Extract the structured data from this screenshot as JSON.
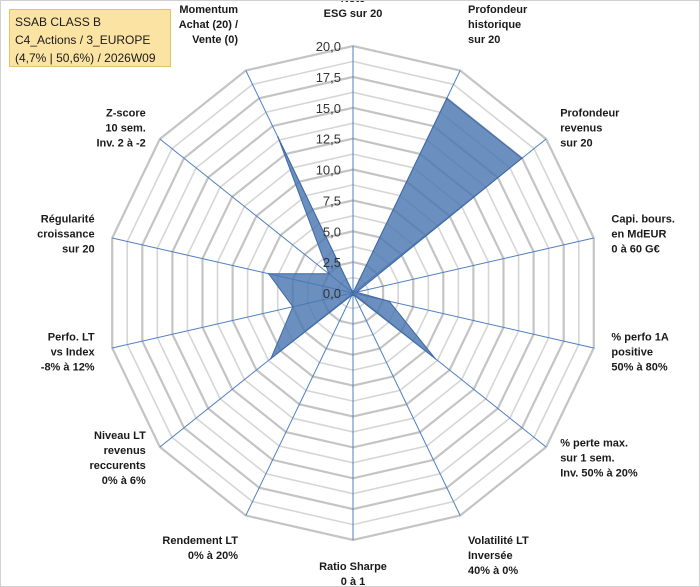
{
  "header": {
    "line1": "SSAB CLASS B",
    "line2": "C4_Actions / 3_EUROPE",
    "line3": "(4,7% | 50,6%) / 2026W09"
  },
  "chart_data": {
    "type": "radar",
    "title": "",
    "rmin": 0,
    "rmax": 20,
    "ticks": [
      "0,0",
      "2,5",
      "5,0",
      "7,5",
      "10,0",
      "12,5",
      "15,0",
      "17,5",
      "20,0"
    ],
    "tick_values": [
      0,
      2.5,
      5,
      7.5,
      10,
      12.5,
      15,
      17.5,
      20
    ],
    "categories": [
      "Note|ESG sur 20",
      "Profondeur|historique|sur 20",
      "Profondeur|revenus|sur 20",
      "Capi. bours.|en MdEUR|0 à 60 G€",
      "% perfo 1A|positive|50% à 80%",
      "% perte max.|sur 1 sem.|Inv. 50% à 20%",
      "Volatilité LT|Inversée|40% à 0%",
      "Ratio Sharpe|0 à 1",
      "Rendement LT|0% à 20%",
      "Niveau LT|revenus|reccurents|0% à 6%",
      "Perfo. LT|vs Index|-8% à 12%",
      "Régularité|croissance|sur 20",
      "Z-score|10 sem.|Inv. 2 à -2",
      "Momentum|Achat (20) /|Vente (0)"
    ],
    "series": [
      {
        "name": "SSAB CLASS B",
        "color": "#4a76b0",
        "values": [
          0,
          17.5,
          17.5,
          0.3,
          3,
          8.5,
          0.2,
          0.2,
          0.2,
          8.5,
          5,
          7,
          2.5,
          14
        ]
      }
    ]
  }
}
